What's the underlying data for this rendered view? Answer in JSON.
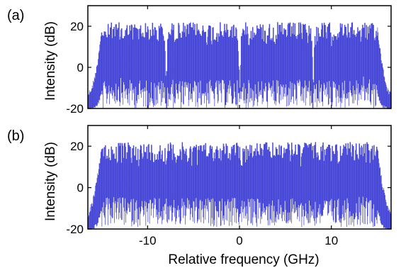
{
  "chart_data": [
    {
      "type": "line",
      "panel_label": "(a)",
      "ylabel": "Intensity (dB)",
      "xlim": [
        -16.5,
        16.5
      ],
      "ylim": [
        -20,
        30
      ],
      "yticks": [
        20,
        0,
        -20
      ],
      "xticks": [],
      "series": [
        {
          "color": "#3d3dd6",
          "comb_span_ghz": [
            -15,
            15
          ],
          "x": [
            -16.5,
            -16,
            -15.5,
            -15,
            -14,
            -12,
            -10,
            -8.2,
            -8,
            -7.8,
            -6,
            -4,
            -2,
            -0.2,
            0,
            0.2,
            2,
            4,
            6,
            7.8,
            8,
            8.2,
            10,
            12,
            14,
            15,
            15.5,
            16,
            16.5
          ],
          "y_peak": [
            -12,
            -8,
            2,
            20,
            22,
            22,
            22,
            22,
            -8,
            22,
            22,
            22,
            22,
            22,
            -8,
            22,
            22,
            22,
            22,
            22,
            -8,
            22,
            22,
            22,
            22,
            21,
            4,
            -8,
            -12
          ],
          "y_floor": [
            -20,
            -19,
            -18,
            -12,
            -8,
            -10,
            -10,
            -10,
            -16,
            -10,
            -10,
            -10,
            -10,
            -10,
            -16,
            -10,
            -10,
            -10,
            -10,
            -10,
            -16,
            -10,
            -10,
            -10,
            -8,
            -12,
            -18,
            -19,
            -20
          ]
        }
      ]
    },
    {
      "type": "line",
      "panel_label": "(b)",
      "xlabel": "Relative frequency (GHz)",
      "ylabel": "Intensity (dB)",
      "xlim": [
        -16.5,
        16.5
      ],
      "ylim": [
        -20,
        30
      ],
      "yticks": [
        20,
        0,
        -20
      ],
      "xticks": [
        -10,
        0,
        10
      ],
      "series": [
        {
          "color": "#3d3dd6",
          "comb_span_ghz": [
            -15,
            15
          ],
          "x": [
            -16.5,
            -16,
            -15.5,
            -15,
            -14,
            -12,
            -10,
            -8,
            -6,
            -4,
            -2,
            0,
            2,
            4,
            6,
            8,
            10,
            12,
            14,
            15,
            15.5,
            16,
            16.5
          ],
          "y_peak": [
            -12,
            -6,
            5,
            21,
            22,
            22,
            22,
            22,
            22,
            22,
            22,
            22,
            22,
            22,
            22,
            22,
            22,
            22,
            22,
            21,
            4,
            -6,
            -12
          ],
          "y_floor": [
            -20,
            -19,
            -17,
            -10,
            -8,
            -9,
            -9,
            -9,
            -9,
            -9,
            -9,
            -9,
            -9,
            -9,
            -9,
            -9,
            -9,
            -9,
            -8,
            -10,
            -17,
            -19,
            -20
          ]
        }
      ]
    }
  ]
}
